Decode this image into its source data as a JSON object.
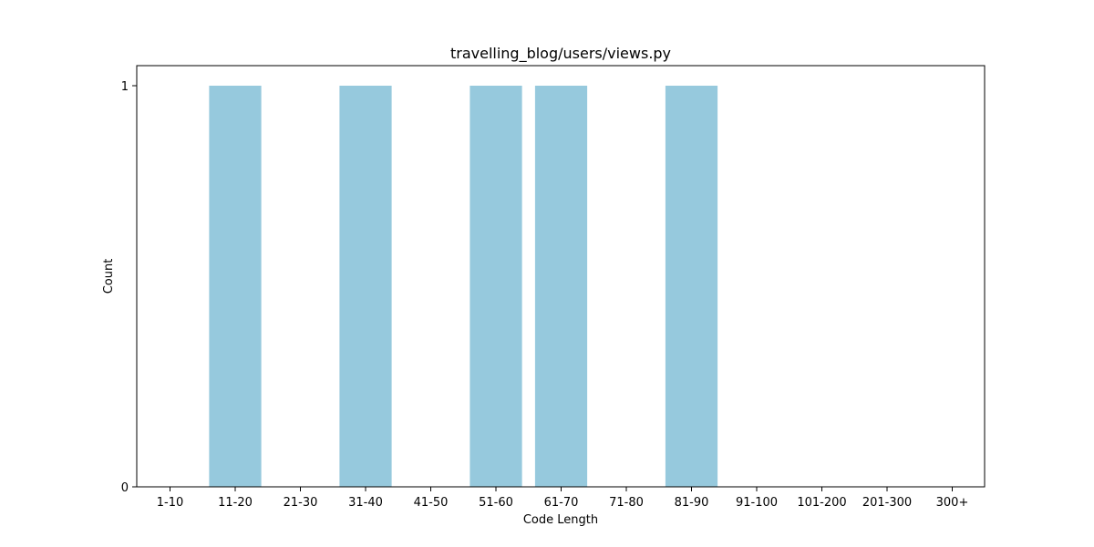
{
  "chart_data": {
    "type": "bar",
    "title": "travelling_blog/users/views.py",
    "xlabel": "Code Length",
    "ylabel": "Count",
    "categories": [
      "1-10",
      "11-20",
      "21-30",
      "31-40",
      "41-50",
      "51-60",
      "61-70",
      "71-80",
      "81-90",
      "91-100",
      "101-200",
      "201-300",
      "300+"
    ],
    "values": [
      0,
      1,
      0,
      1,
      0,
      1,
      1,
      0,
      1,
      0,
      0,
      0,
      0
    ],
    "ylim": [
      0,
      1
    ],
    "yticks": [
      0,
      1
    ],
    "grid": false,
    "bar_color": "#96c9dd"
  }
}
